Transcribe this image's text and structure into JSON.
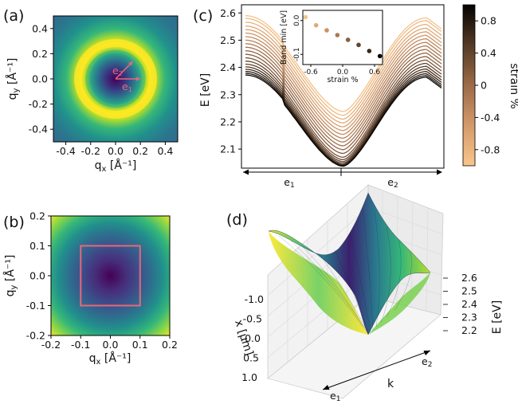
{
  "chart_data": [
    {
      "id": "a",
      "type": "heatmap",
      "panel_label": "(a)",
      "description_colormap": "viridis",
      "xlabel": "qₓ [Å⁻¹]",
      "ylabel": "qᵧ [Å⁻¹]",
      "xlabel_main": "q",
      "xlabel_sub": "x",
      "xlabel_unit": " [Å⁻¹]",
      "ylabel_main": "q",
      "ylabel_sub": "y",
      "ylabel_unit": " [Å⁻¹]",
      "xlim": [
        -0.5,
        0.5
      ],
      "ylim": [
        -0.5,
        0.5
      ],
      "xticks": [
        -0.4,
        -0.2,
        0.0,
        0.2,
        0.4
      ],
      "yticks": [
        0.4,
        0.2,
        0.0,
        -0.2,
        -0.4
      ],
      "xtick_labels": [
        "-0.4",
        "-0.2",
        "0.0",
        "0.2",
        "0.4"
      ],
      "ytick_labels": [
        "0.4",
        "0.2",
        "0.0",
        "-0.2",
        "-0.4"
      ],
      "vectors": [
        {
          "name": "e₁",
          "label_main": "e",
          "label_sub": "1",
          "dx": 0.2,
          "dy": 0.0
        },
        {
          "name": "e₂",
          "label_main": "e",
          "label_sub": "2",
          "dx": 0.14,
          "dy": 0.14
        }
      ],
      "arrow_color": "#e8667a"
    },
    {
      "id": "b",
      "type": "heatmap",
      "panel_label": "(b)",
      "description_colormap": "viridis",
      "xlabel_main": "q",
      "xlabel_sub": "x",
      "xlabel_unit": " [Å⁻¹]",
      "ylabel_main": "q",
      "ylabel_sub": "y",
      "ylabel_unit": " [Å⁻¹]",
      "xlim": [
        -0.2,
        0.2
      ],
      "ylim": [
        -0.2,
        0.2
      ],
      "xticks": [
        -0.2,
        -0.1,
        0.0,
        0.1,
        0.2
      ],
      "yticks": [
        0.2,
        0.1,
        0.0,
        -0.1,
        -0.2
      ],
      "xtick_labels": [
        "-0.2",
        "-0.1",
        "0.0",
        "0.1",
        "0.2"
      ],
      "ytick_labels": [
        "0.2",
        "0.1",
        "0.0",
        "-0.1",
        "-0.2"
      ],
      "box": {
        "x0": -0.1,
        "x1": 0.1,
        "y0": -0.1,
        "y1": 0.1
      },
      "box_color": "#e8667a"
    },
    {
      "id": "c",
      "type": "line",
      "panel_label": "(c)",
      "ylabel": "E [eV]",
      "ylim": [
        2.03,
        2.63
      ],
      "yticks": [
        2.1,
        2.2,
        2.3,
        2.4,
        2.5,
        2.6
      ],
      "ytick_labels": [
        "2.1",
        "2.2",
        "2.3",
        "2.4",
        "2.5",
        "2.6"
      ],
      "x_direction_labels": [
        {
          "main": "e",
          "sub": "1"
        },
        {
          "main": "e",
          "sub": "2"
        }
      ],
      "colorbar": {
        "label": "strain %",
        "range": [
          -1.0,
          1.0
        ],
        "ticks": [
          0.8,
          0.4,
          0.0,
          -0.4,
          -0.8
        ],
        "tick_labels": [
          "0.8",
          "0.4",
          "0",
          "-0.4",
          "-0.8"
        ]
      },
      "series": [
        {
          "strain": -0.95,
          "min": 2.238,
          "left": 2.59,
          "right": 2.542
        },
        {
          "strain": -0.85,
          "min": 2.224,
          "left": 2.58,
          "right": 2.532
        },
        {
          "strain": -0.75,
          "min": 2.21,
          "left": 2.566,
          "right": 2.518
        },
        {
          "strain": -0.65,
          "min": 2.196,
          "left": 2.552,
          "right": 2.504
        },
        {
          "strain": -0.55,
          "min": 2.182,
          "left": 2.539,
          "right": 2.491
        },
        {
          "strain": -0.45,
          "min": 2.168,
          "left": 2.526,
          "right": 2.478
        },
        {
          "strain": -0.35,
          "min": 2.154,
          "left": 2.513,
          "right": 2.465
        },
        {
          "strain": -0.25,
          "min": 2.14,
          "left": 2.5,
          "right": 2.452
        },
        {
          "strain": -0.15,
          "min": 2.126,
          "left": 2.487,
          "right": 2.439
        },
        {
          "strain": -0.05,
          "min": 2.112,
          "left": 2.474,
          "right": 2.426
        },
        {
          "strain": 0.05,
          "min": 2.098,
          "left": 2.461,
          "right": 2.413
        },
        {
          "strain": 0.15,
          "min": 2.084,
          "left": 2.448,
          "right": 2.4
        },
        {
          "strain": 0.25,
          "min": 2.07,
          "left": 2.435,
          "right": 2.387
        },
        {
          "strain": 0.35,
          "min": 2.061,
          "left": 2.423,
          "right": 2.375
        },
        {
          "strain": 0.45,
          "min": 2.054,
          "left": 2.412,
          "right": 2.364
        },
        {
          "strain": 0.55,
          "min": 2.048,
          "left": 2.402,
          "right": 2.354
        },
        {
          "strain": 0.65,
          "min": 2.043,
          "left": 2.393,
          "right": 2.345
        },
        {
          "strain": 0.75,
          "min": 2.04,
          "left": 2.385,
          "right": 2.337
        },
        {
          "strain": 0.85,
          "min": 2.038,
          "left": 2.378,
          "right": 2.33
        },
        {
          "strain": 0.95,
          "min": 2.037,
          "left": 2.372,
          "right": 2.324
        }
      ],
      "inset": {
        "type": "scatter",
        "xlabel": "strain %",
        "ylabel": "Band min [eV]",
        "xlim": [
          -0.75,
          0.75
        ],
        "ylim": [
          -0.13,
          0.03
        ],
        "xticks": [
          -0.6,
          0.0,
          0.6
        ],
        "xtick_labels": [
          "-0.6",
          "0.0",
          "0.6"
        ],
        "yticks": [
          0.0,
          -0.1
        ],
        "ytick_labels": [
          "0.0",
          "-0.1"
        ],
        "x": [
          -0.7,
          -0.5,
          -0.3,
          -0.1,
          0.1,
          0.3,
          0.5,
          0.7
        ],
        "y": [
          0.01,
          -0.014,
          -0.029,
          -0.043,
          -0.057,
          -0.072,
          -0.09,
          -0.105
        ]
      }
    },
    {
      "id": "d",
      "type": "surface",
      "panel_label": "(d)",
      "description_colormap": "viridis",
      "x_axis_label": "x [μm]",
      "x_ticks": [
        "-1.0",
        "-0.5",
        "0.0",
        "0.5",
        "1.0"
      ],
      "k_axis_label": "k",
      "k_end_labels": [
        {
          "main": "e",
          "sub": "1"
        },
        {
          "main": "e",
          "sub": "2"
        }
      ],
      "z_axis_label": "E [eV]",
      "z_ticks": [
        "2.6",
        "2.5",
        "2.4",
        "2.3",
        "2.2"
      ],
      "zlim": [
        2.2,
        2.6
      ]
    }
  ]
}
